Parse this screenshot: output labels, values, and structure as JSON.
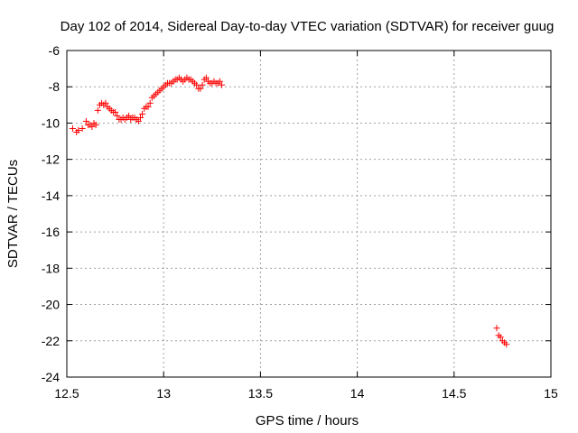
{
  "chart_data": {
    "type": "scatter",
    "title": "Day 102 of 2014, Sidereal Day-to-day VTEC variation (SDTVAR) for receiver guug",
    "xlabel": "GPS time / hours",
    "ylabel": "SDTVAR / TECUs",
    "xlim": [
      12.5,
      15
    ],
    "ylim": [
      -24,
      -6
    ],
    "x_ticks": [
      "12.5",
      "13",
      "13.5",
      "14",
      "14.5",
      "15"
    ],
    "y_ticks": [
      "-24",
      "-22",
      "-20",
      "-18",
      "-16",
      "-14",
      "-12",
      "-10",
      "-8",
      "-6"
    ],
    "grid": true,
    "marker": "plus",
    "color": "#ff0000",
    "series": [
      {
        "x": [
          12.53,
          12.55,
          12.56,
          12.58,
          12.6,
          12.61,
          12.62,
          12.63,
          12.64,
          12.65,
          12.66,
          12.67,
          12.68,
          12.69,
          12.7,
          12.71,
          12.72,
          12.73,
          12.74,
          12.75,
          12.76,
          12.77,
          12.78,
          12.79,
          12.8,
          12.81,
          12.82,
          12.83,
          12.84,
          12.85,
          12.86,
          12.87,
          12.88,
          12.89,
          12.9,
          12.91,
          12.92,
          12.93,
          12.94,
          12.95,
          12.96,
          12.97,
          12.98,
          12.99,
          13.0,
          13.01,
          13.02,
          13.03,
          13.04,
          13.05,
          13.06,
          13.07,
          13.08,
          13.09,
          13.1,
          13.11,
          13.12,
          13.13,
          13.14,
          13.15,
          13.16,
          13.17,
          13.18,
          13.19,
          13.2,
          13.21,
          13.22,
          13.23,
          13.24,
          13.25,
          13.26,
          13.27,
          13.28,
          13.29,
          13.3,
          14.72,
          14.73,
          14.74,
          14.75,
          14.76,
          14.77
        ],
        "y": [
          -10.3,
          -10.5,
          -10.4,
          -10.3,
          -9.9,
          -10.1,
          -10.1,
          -10.2,
          -10.0,
          -10.1,
          -9.3,
          -9.0,
          -8.9,
          -9.0,
          -8.9,
          -9.1,
          -9.2,
          -9.3,
          -9.4,
          -9.4,
          -9.6,
          -9.8,
          -9.8,
          -9.7,
          -9.8,
          -9.7,
          -9.6,
          -9.8,
          -9.7,
          -9.7,
          -9.8,
          -9.9,
          -9.7,
          -9.5,
          -9.2,
          -9.1,
          -9.1,
          -8.9,
          -8.6,
          -8.5,
          -8.4,
          -8.3,
          -8.2,
          -8.1,
          -8.0,
          -7.9,
          -7.8,
          -7.8,
          -7.8,
          -7.7,
          -7.6,
          -7.6,
          -7.5,
          -7.6,
          -7.7,
          -7.6,
          -7.5,
          -7.6,
          -7.6,
          -7.7,
          -7.8,
          -7.9,
          -8.1,
          -8.1,
          -7.9,
          -7.6,
          -7.5,
          -7.7,
          -7.8,
          -7.8,
          -7.7,
          -7.8,
          -7.8,
          -7.7,
          -7.9,
          -21.3,
          -21.7,
          -21.8,
          -22.0,
          -22.1,
          -22.2
        ]
      }
    ]
  }
}
